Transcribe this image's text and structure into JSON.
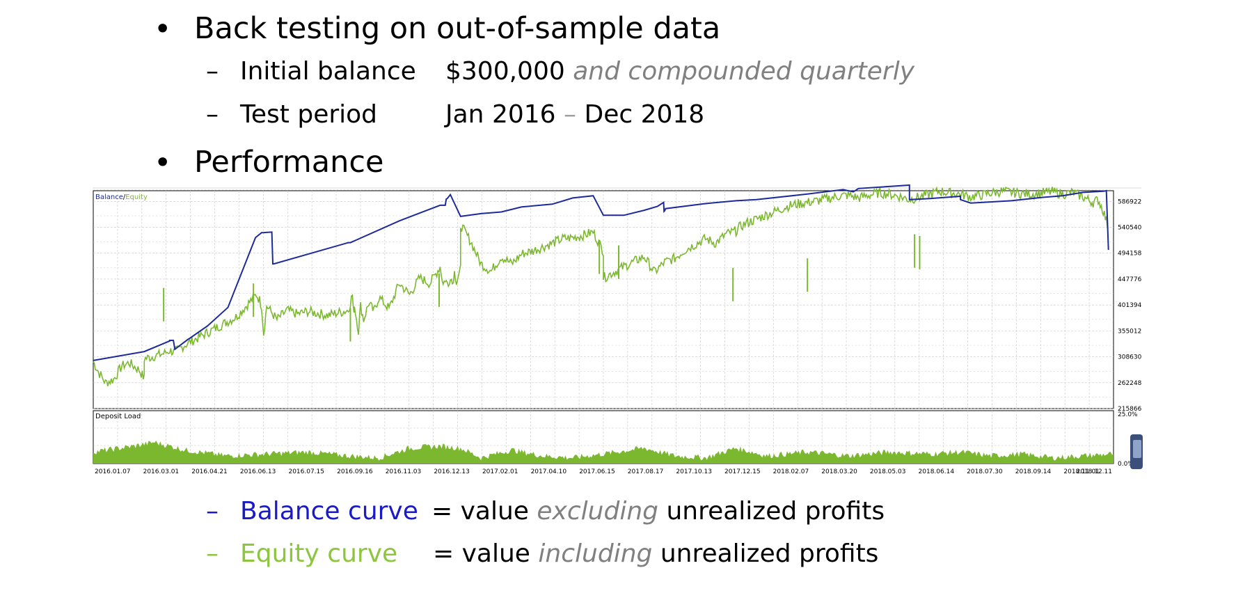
{
  "slide": {
    "bullet1": "Back testing on out-of-sample data",
    "sub1_label": "Initial balance",
    "sub1_value": "$300,000",
    "sub1_note": "and compounded quarterly",
    "sub2_label": "Test period",
    "sub2_value_a": "Jan 2016",
    "sub2_dash": "–",
    "sub2_value_b": "Dec 2018",
    "bullet2": "Performance",
    "legend1_label": "Balance curve",
    "legend1_eq": "= value",
    "legend1_em": "excluding",
    "legend1_tail": "unrealized profits",
    "legend2_label": "Equity curve",
    "legend2_eq": "= value",
    "legend2_em": "including",
    "legend2_tail": "unrealized profits"
  },
  "colors": {
    "balance": "#1c2a9c",
    "equity": "#7cb82f",
    "legend_balance": "#1a1ac8",
    "legend_equity": "#8cc63e",
    "grid": "#c8c8c8"
  },
  "chart_data": [
    {
      "type": "line",
      "title_balance": "Balance",
      "title_sep": "/",
      "title_equity": "Equity",
      "ylim": [
        215866,
        606000
      ],
      "yticks": [
        "586922",
        "540540",
        "494158",
        "447776",
        "401394",
        "355012",
        "308630",
        "262248",
        "215866"
      ],
      "xticks": [
        "2016.01.07",
        "2016.03.01",
        "2016.04.21",
        "2016.06.13",
        "2016.07.15",
        "2016.09.16",
        "2016.11.03",
        "2016.12.13",
        "2017.02.01",
        "2017.04.10",
        "2017.06.15",
        "2017.08.17",
        "2017.10.13",
        "2017.12.15",
        "2018.02.07",
        "2018.03.20",
        "2018.05.03",
        "2018.06.14",
        "2018.07.30",
        "2018.09.14",
        "2018.11.01",
        "2018.12.11"
      ],
      "series": [
        {
          "name": "Balance",
          "x": [
            0.0,
            0.05,
            0.075,
            0.075,
            0.0785,
            0.08,
            0.093,
            0.094,
            0.112,
            0.132,
            0.159,
            0.165,
            0.1665,
            0.175,
            0.176,
            0.177,
            0.25,
            0.252,
            0.3,
            0.32,
            0.34,
            0.345,
            0.346,
            0.347,
            0.35,
            0.36,
            0.38,
            0.4,
            0.42,
            0.45,
            0.47,
            0.49,
            0.5,
            0.52,
            0.54,
            0.553,
            0.559,
            0.5595,
            0.56,
            0.561,
            0.6,
            0.63,
            0.65,
            0.7,
            0.735,
            0.745,
            0.75,
            0.8,
            0.8,
            0.82,
            0.85,
            0.85,
            0.86,
            0.9,
            0.93,
            0.95,
            0.97,
            0.99,
            0.993,
            0.995
          ],
          "y": [
            302000,
            318000,
            337000,
            338000,
            338000,
            322000,
            340000,
            341000,
            364000,
            397000,
            522000,
            531000,
            531000,
            532000,
            475000,
            475000,
            513000,
            513000,
            552000,
            566000,
            580000,
            580000,
            591000,
            592000,
            599000,
            560000,
            565000,
            568000,
            577000,
            582000,
            593000,
            597000,
            562000,
            562000,
            571000,
            578000,
            585000,
            569000,
            570000,
            574000,
            583000,
            588000,
            590000,
            600000,
            608000,
            604000,
            610000,
            616000,
            590000,
            592000,
            596000,
            590000,
            584000,
            588000,
            594000,
            597000,
            603000,
            605000,
            606000,
            500000
          ]
        },
        {
          "name": "Equity",
          "x": [
            0.0,
            0.005,
            0.012,
            0.02,
            0.028,
            0.035,
            0.045,
            0.05,
            0.05,
            0.06,
            0.07,
            0.075,
            0.08,
            0.09,
            0.1,
            0.12,
            0.14,
            0.15,
            0.16,
            0.163,
            0.165,
            0.167,
            0.17,
            0.18,
            0.19,
            0.2,
            0.21,
            0.23,
            0.25,
            0.254,
            0.255,
            0.256,
            0.26,
            0.262,
            0.265,
            0.27,
            0.275,
            0.28,
            0.29,
            0.3,
            0.31,
            0.32,
            0.33,
            0.34,
            0.343,
            0.345,
            0.348,
            0.35,
            0.352,
            0.354,
            0.356,
            0.36,
            0.36,
            0.37,
            0.38,
            0.39,
            0.4,
            0.41,
            0.42,
            0.43,
            0.44,
            0.45,
            0.46,
            0.47,
            0.48,
            0.49,
            0.5,
            0.5,
            0.52,
            0.54,
            0.55,
            0.56,
            0.57,
            0.58,
            0.59,
            0.6,
            0.61,
            0.62,
            0.63,
            0.633,
            0.64,
            0.65,
            0.66,
            0.67,
            0.68,
            0.69,
            0.7,
            0.71,
            0.72,
            0.73,
            0.74,
            0.75,
            0.76,
            0.77,
            0.78,
            0.79,
            0.8,
            0.81,
            0.82,
            0.83,
            0.84,
            0.85,
            0.86,
            0.87,
            0.88,
            0.89,
            0.9,
            0.91,
            0.92,
            0.93,
            0.94,
            0.95,
            0.96,
            0.97,
            0.975,
            0.98,
            0.985,
            0.99,
            0.995
          ],
          "y": [
            300000,
            282000,
            262000,
            268000,
            292000,
            298000,
            285000,
            270000,
            305000,
            310000,
            315000,
            320000,
            317000,
            330000,
            340000,
            360000,
            380000,
            400000,
            420000,
            410000,
            400000,
            350000,
            400000,
            375000,
            392000,
            385000,
            390000,
            383000,
            392000,
            420000,
            390000,
            400000,
            355000,
            400000,
            375000,
            405000,
            390000,
            415000,
            395000,
            440000,
            420000,
            450000,
            440000,
            470000,
            438000,
            448000,
            435000,
            455000,
            440000,
            460000,
            445000,
            465000,
            545000,
            515000,
            475000,
            462000,
            488000,
            475000,
            493000,
            498000,
            505000,
            512000,
            520000,
            522000,
            526000,
            532000,
            498000,
            450000,
            470000,
            488000,
            460000,
            478000,
            485000,
            500000,
            510000,
            520000,
            512000,
            528000,
            534000,
            540000,
            548000,
            555000,
            563000,
            570000,
            578000,
            582000,
            585000,
            588000,
            592000,
            596000,
            598000,
            593000,
            598000,
            602000,
            600000,
            596000,
            590000,
            595000,
            600000,
            605000,
            602000,
            600000,
            595000,
            598000,
            602000,
            605000,
            603000,
            601000,
            600000,
            602000,
            604000,
            600000,
            603000,
            595000,
            590000,
            585000,
            590000,
            570000,
            540000
          ]
        }
      ],
      "equity_dips": [
        {
          "x": 0.069,
          "y": 372000
        },
        {
          "x": 0.157,
          "y": 380000
        },
        {
          "x": 0.252,
          "y": 336000
        },
        {
          "x": 0.339,
          "y": 398000
        },
        {
          "x": 0.496,
          "y": 457000
        },
        {
          "x": 0.515,
          "y": 448000
        },
        {
          "x": 0.627,
          "y": 408000
        },
        {
          "x": 0.7,
          "y": 425000
        },
        {
          "x": 0.805,
          "y": 468000
        },
        {
          "x": 0.81,
          "y": 465000
        }
      ]
    },
    {
      "type": "area",
      "title": "Deposit Load",
      "ylim": [
        0,
        25
      ],
      "yticks": [
        "25.0%",
        "0.0%"
      ],
      "x": [
        0.0,
        0.04,
        0.06,
        0.09,
        0.13,
        0.17,
        0.21,
        0.25,
        0.28,
        0.31,
        0.34,
        0.36,
        0.38,
        0.41,
        0.44,
        0.47,
        0.5,
        0.54,
        0.57,
        0.6,
        0.63,
        0.66,
        0.7,
        0.74,
        0.78,
        0.82,
        0.85,
        0.88,
        0.91,
        0.94,
        0.97,
        1.0
      ],
      "values": [
        6,
        9,
        11,
        7,
        4,
        5,
        6,
        4,
        3,
        8,
        9,
        8,
        3,
        7,
        4,
        3,
        5,
        8,
        4,
        3,
        8,
        4,
        6,
        4,
        6,
        5,
        6,
        4,
        5,
        3,
        4,
        5
      ]
    }
  ]
}
